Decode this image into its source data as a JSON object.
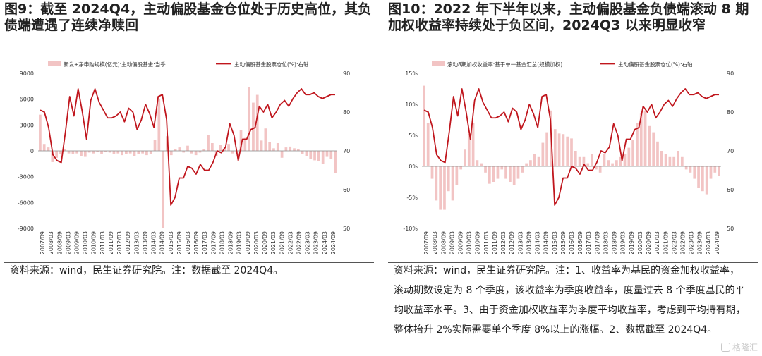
{
  "figures": [
    {
      "title": "图9：截至 2024Q4，主动偏股基金仓位处于历史高位，其负债端遭遇了连续净赎回",
      "source": "资料来源：wind，民生证券研究院。注：数据截至 2024Q4。"
    },
    {
      "title": "图10：2022 年下半年以来，主动偏股基金负债端滚动 8 期加权收益率持续处于负区间，2024Q3 以来明显收窄",
      "source": "资料来源：wind，民生证券研究院。注：1、收益率为基民的资金加权收益率，滚动期数设定为 8 个季度，该收益率为季度收益率，度量过去 8 个季度基民的平均收益率水平。3、由于资金加权收益率为季度平均收益率，考虑到平均持有期，整体抬升 2%实际需要单个季度 8%以上的涨幅。2、数据截至 2024Q4。"
    }
  ],
  "watermark": "格隆汇",
  "chart_data": [
    {
      "type": "bar+line",
      "x_labels": [
        "2007/09",
        "2008/03",
        "2008/09",
        "2009/03",
        "2009/09",
        "2010/03",
        "2010/09",
        "2011/03",
        "2011/09",
        "2012/03",
        "2012/09",
        "2013/03",
        "2013/09",
        "2014/03",
        "2014/09",
        "2015/03",
        "2015/09",
        "2016/03",
        "2016/09",
        "2017/03",
        "2017/09",
        "2018/03",
        "2018/09",
        "2019/03",
        "2019/09",
        "2020/03",
        "2020/09",
        "2021/03",
        "2021/09",
        "2022/03",
        "2022/09",
        "2023/03",
        "2023/09",
        "2024/03",
        "2024/09"
      ],
      "yleft": {
        "min": -9000,
        "max": 9000,
        "ticks": [
          -9000,
          -6000,
          -3000,
          0,
          3000,
          6000,
          9000
        ]
      },
      "yright": {
        "min": 50,
        "max": 90,
        "ticks": [
          50,
          60,
          70,
          80,
          90
        ]
      },
      "series": [
        {
          "name": "新发+净申购规模(亿元):主动偏股基金:当季",
          "kind": "bar",
          "axis": "left",
          "color": "#f2c4c4",
          "values": [
            4200,
            800,
            400,
            -1300,
            -800,
            -400,
            200,
            -300,
            -400,
            -300,
            -600,
            -700,
            -200,
            -300,
            -100,
            -400,
            -100,
            -200,
            -400,
            -300,
            -500,
            -400,
            -300,
            -600,
            -400,
            -300,
            -500,
            -400,
            1300,
            6000,
            -9000,
            1700,
            -500,
            200,
            400,
            -200,
            600,
            -300,
            -500,
            -200,
            200,
            1800,
            900,
            -600,
            700,
            300,
            800,
            -300,
            -200,
            2400,
            1500,
            7400,
            5600,
            6500,
            1200,
            2600,
            1000,
            300,
            900,
            -800,
            400,
            500,
            300,
            200,
            -400,
            -600,
            -900,
            -1100,
            -1200,
            -1500,
            -700,
            -900,
            -2600
          ]
        },
        {
          "name": "主动偏股基金股票仓位(%):右轴",
          "kind": "line",
          "axis": "right",
          "color": "#c0161d",
          "values": [
            80.5,
            80,
            76,
            69,
            67.5,
            67,
            75,
            84,
            79,
            86,
            80,
            73,
            83,
            86,
            82.5,
            80.5,
            78.5,
            78.5,
            79,
            80,
            77.5,
            81,
            80,
            75.5,
            78,
            82,
            79.5,
            76,
            84,
            84.5,
            78,
            56,
            58,
            63,
            63,
            66,
            65.5,
            64,
            66.5,
            65,
            65,
            67,
            70,
            69.5,
            71,
            77,
            74,
            67.5,
            73,
            73,
            75.5,
            76,
            81.5,
            80,
            82,
            78.5,
            80,
            82,
            83,
            81.5,
            83.5,
            85,
            86,
            84.5,
            84.5,
            85,
            84,
            83.5,
            84,
            84.5,
            84.5
          ]
        }
      ]
    },
    {
      "type": "bar+line",
      "x_labels": [
        "2007/09",
        "2008/03",
        "2008/09",
        "2009/03",
        "2009/09",
        "2010/03",
        "2010/09",
        "2011/03",
        "2011/09",
        "2012/03",
        "2012/09",
        "2013/03",
        "2013/09",
        "2014/03",
        "2014/09",
        "2015/03",
        "2015/09",
        "2016/03",
        "2016/09",
        "2017/03",
        "2017/09",
        "2018/03",
        "2018/09",
        "2019/03",
        "2019/09",
        "2020/03",
        "2020/09",
        "2021/03",
        "2021/09",
        "2022/03",
        "2022/09",
        "2023/03",
        "2023/09",
        "2024/03",
        "2024/09"
      ],
      "yleft": {
        "min": -0.1,
        "max": 0.15,
        "ticks": [
          -0.1,
          -0.05,
          0,
          0.05,
          0.1,
          0.15
        ],
        "tick_labels": [
          "-10%",
          "-5%",
          "0%",
          "5%",
          "10%",
          "15%"
        ]
      },
      "yright": {
        "min": 50,
        "max": 90,
        "ticks": [
          50,
          60,
          70,
          80,
          90
        ]
      },
      "series": [
        {
          "name": "滚动8期加权收益率:基于单一基金汇总(规模加权)",
          "kind": "bar",
          "axis": "left",
          "color": "#f2c4c4",
          "values": [
            0.13,
            0.07,
            -0.02,
            -0.055,
            -0.07,
            -0.07,
            -0.04,
            -0.055,
            -0.03,
            -0.005,
            0.027,
            0.052,
            0.07,
            0.01,
            0.005,
            -0.01,
            -0.028,
            -0.025,
            -0.02,
            -0.005,
            -0.02,
            -0.025,
            -0.03,
            -0.02,
            -0.01,
            0.005,
            0.01,
            0.02,
            0.015,
            0.038,
            0.055,
            0.09,
            0.06,
            0.053,
            0.052,
            0.048,
            0.045,
            0.025,
            0.015,
            0.015,
            0.005,
            0.02,
            -0.005,
            -0.01,
            0.02,
            0.01,
            0.005,
            0.01,
            0.015,
            0.02,
            0.03,
            0.042,
            0.07,
            0.085,
            0.09,
            0.065,
            0.055,
            0.04,
            0.025,
            0.02,
            0.015,
            0.015,
            0.025,
            0.015,
            -0.005,
            -0.01,
            -0.02,
            -0.035,
            -0.04,
            -0.045,
            -0.02,
            -0.01,
            -0.015
          ]
        },
        {
          "name": "主动偏股基金股票仓位(%):右轴",
          "kind": "line",
          "axis": "right",
          "color": "#c0161d",
          "values": [
            80.5,
            80,
            76,
            69,
            67.5,
            67,
            75,
            84,
            79,
            86,
            80,
            73,
            83,
            86,
            82.5,
            80.5,
            78.5,
            78.5,
            79,
            80,
            77.5,
            81,
            80,
            75.5,
            78,
            82,
            79.5,
            76,
            84,
            84.5,
            78,
            56,
            58,
            63,
            63,
            66,
            65.5,
            64,
            66.5,
            65,
            65,
            67,
            70,
            69.5,
            71,
            77,
            74,
            67.5,
            73,
            73,
            75.5,
            76,
            81.5,
            80,
            82,
            78.5,
            80,
            82,
            83,
            81.5,
            83.5,
            85,
            86,
            84.5,
            84.5,
            85,
            84,
            83.5,
            84,
            84.5,
            84.5
          ]
        }
      ]
    }
  ]
}
